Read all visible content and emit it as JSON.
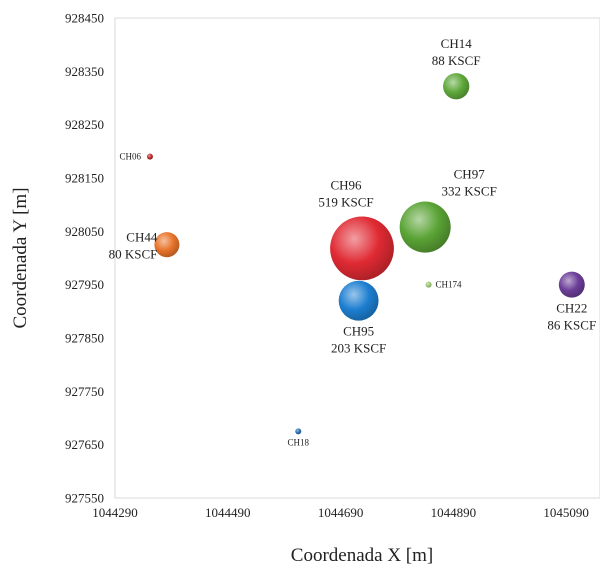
{
  "chart_data": {
    "type": "scatter",
    "variant": "bubble",
    "title": "",
    "xlabel": "Coordenada X [m]",
    "ylabel": "Coordenada Y [m]",
    "xlim": [
      1044290,
      1045150
    ],
    "ylim": [
      927550,
      928450
    ],
    "x_ticks": [
      1044290,
      1044490,
      1044690,
      1044890,
      1045090
    ],
    "y_ticks": [
      927550,
      927650,
      927750,
      927850,
      927950,
      928050,
      928150,
      928250,
      928350,
      928450
    ],
    "x_tick_labels": [
      "1044290",
      "1044490",
      "1044690",
      "1044890",
      "1045090"
    ],
    "y_tick_labels": [
      "927550",
      "927650",
      "927750",
      "927850",
      "927950",
      "928050",
      "928150",
      "928250",
      "928350",
      "928450"
    ],
    "grid": false,
    "legend": "none",
    "frame_color": "#d9d9d9",
    "points": [
      {
        "name": "CH14",
        "value_label": "88 KSCF",
        "value": 88,
        "x": 1044895,
        "y": 928322,
        "color": "#5ea83a",
        "label_pos": "above",
        "label_size": "normal"
      },
      {
        "name": "CH06",
        "value_label": "",
        "x": 1044352,
        "y": 928190,
        "color": "#c0282c",
        "label_pos": "left",
        "label_size": "small"
      },
      {
        "name": "CH96",
        "value_label": "519 KSCF",
        "value": 519,
        "x": 1044728,
        "y": 928018,
        "color": "#e02a33",
        "label_pos": "upper-left",
        "label_size": "normal"
      },
      {
        "name": "CH97",
        "value_label": "332 KSCF",
        "value": 332,
        "x": 1044840,
        "y": 928058,
        "color": "#5aa335",
        "label_pos": "upper-right",
        "label_size": "normal"
      },
      {
        "name": "CH44",
        "value_label": "80 KSCF",
        "value": 80,
        "x": 1044382,
        "y": 928025,
        "color": "#e8742a",
        "label_pos": "left",
        "label_size": "normal"
      },
      {
        "name": "CH174",
        "value_label": "",
        "x": 1044846,
        "y": 927950,
        "color": "#9cc874",
        "label_pos": "right",
        "label_size": "small"
      },
      {
        "name": "CH95",
        "value_label": "203 KSCF",
        "value": 203,
        "x": 1044722,
        "y": 927920,
        "color": "#1d7ed0",
        "label_pos": "below",
        "label_size": "normal"
      },
      {
        "name": "CH22",
        "value_label": "86 KSCF",
        "value": 86,
        "x": 1045100,
        "y": 927950,
        "color": "#6b3d97",
        "label_pos": "below",
        "label_size": "normal"
      },
      {
        "name": "CH18",
        "value_label": "",
        "x": 1044615,
        "y": 927675,
        "color": "#2a6fb3",
        "label_pos": "below",
        "label_size": "small"
      }
    ]
  }
}
